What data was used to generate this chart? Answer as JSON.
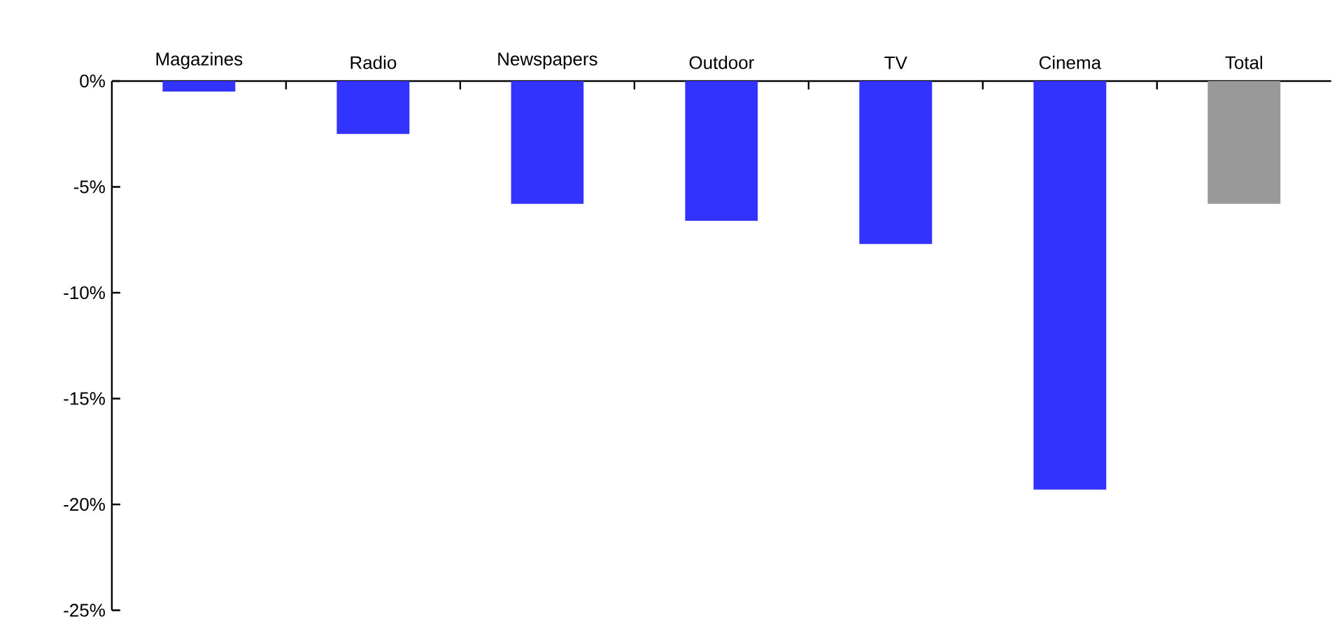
{
  "chart_data": {
    "type": "bar",
    "categories": [
      "Magazines",
      "Radio",
      "Newspapers",
      "Outdoor",
      "TV",
      "Cinema",
      "Total"
    ],
    "values": [
      -0.5,
      -2.5,
      -5.8,
      -6.6,
      -7.7,
      -19.3,
      -5.8
    ],
    "colors": [
      "#3333ff",
      "#3333ff",
      "#3333ff",
      "#3333ff",
      "#3333ff",
      "#3333ff",
      "#999999"
    ],
    "ylim": [
      -25,
      0
    ],
    "yticks": [
      {
        "value": 0,
        "label": "0%"
      },
      {
        "value": -5,
        "label": "-5%"
      },
      {
        "value": -10,
        "label": "-10%"
      },
      {
        "value": -15,
        "label": "-15%"
      },
      {
        "value": -20,
        "label": "-20%"
      },
      {
        "value": -25,
        "label": "-25%"
      }
    ]
  }
}
